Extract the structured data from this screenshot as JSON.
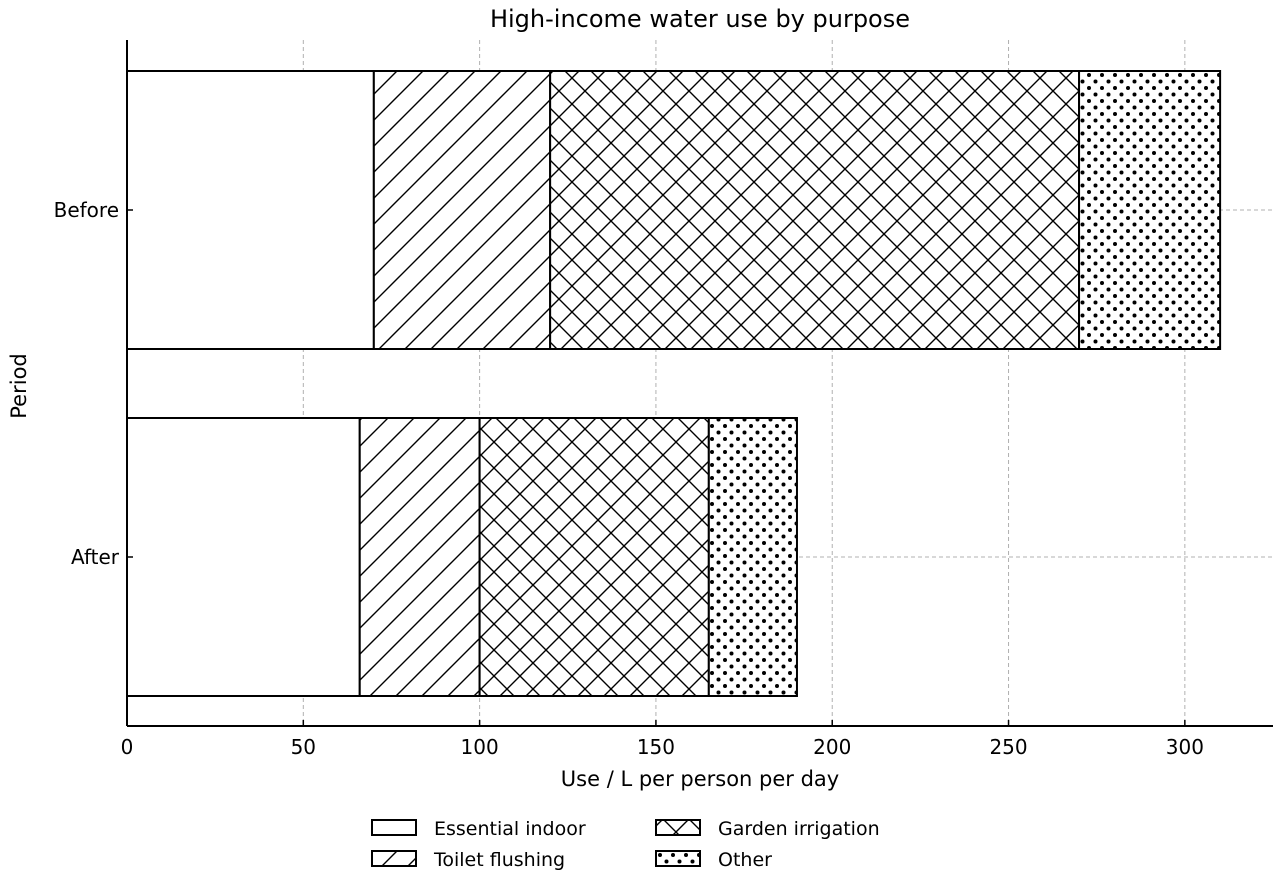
{
  "chart_data": {
    "type": "bar",
    "orientation": "horizontal",
    "stacked": true,
    "title": "High-income water use by purpose",
    "xlabel": "Use / L per person per day",
    "ylabel": "Period",
    "categories": [
      "Before",
      "After"
    ],
    "xlim": [
      0,
      325
    ],
    "xticks": [
      0,
      50,
      100,
      150,
      200,
      250,
      300
    ],
    "grid": true,
    "legend_position": "bottom-center",
    "series": [
      {
        "name": "Essential indoor",
        "values": [
          70,
          66
        ],
        "pattern": "none",
        "color": "#ffffff"
      },
      {
        "name": "Toilet flushing",
        "values": [
          50,
          34
        ],
        "pattern": "diagonal",
        "color": "#ffffff"
      },
      {
        "name": "Garden irrigation",
        "values": [
          150,
          65
        ],
        "pattern": "crosshatch",
        "color": "#ffffff"
      },
      {
        "name": "Other",
        "values": [
          40,
          25
        ],
        "pattern": "dots",
        "color": "#ffffff"
      }
    ]
  }
}
